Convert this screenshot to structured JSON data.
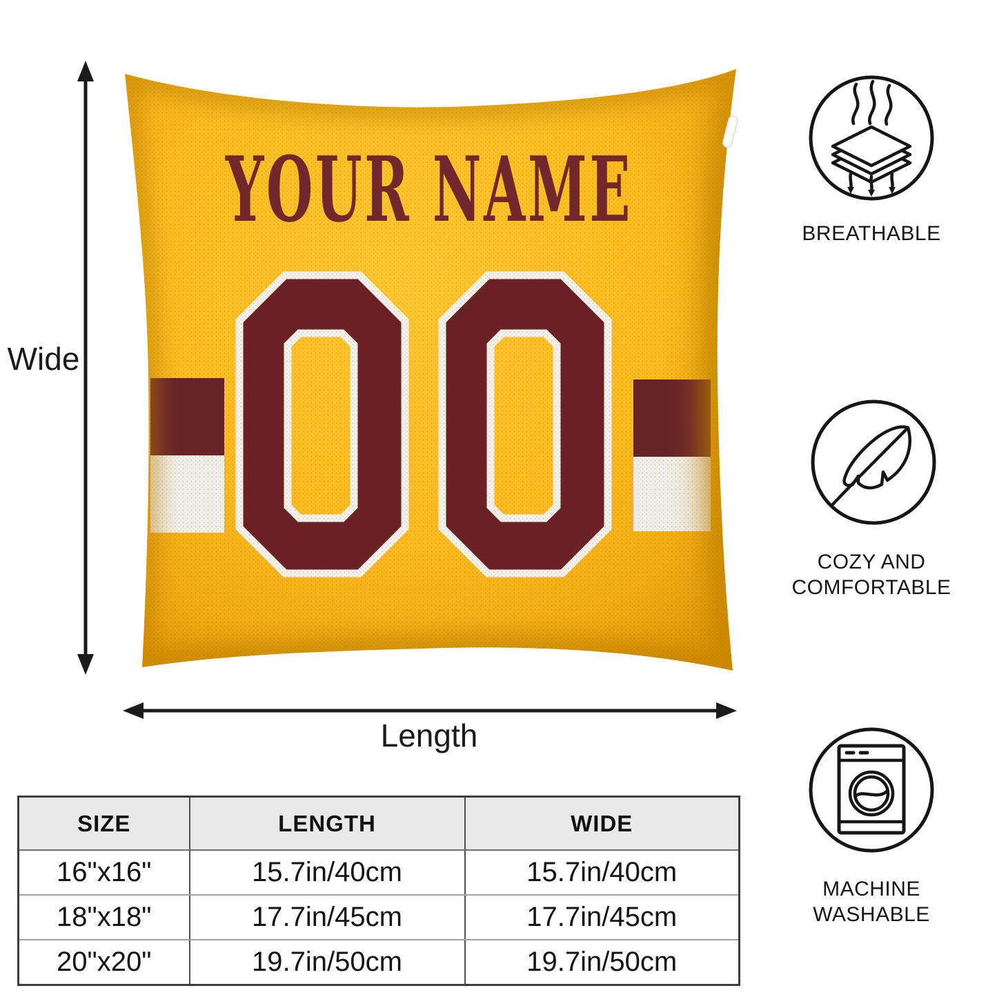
{
  "product": {
    "name_text": "YOUR NAME",
    "number_text": "00",
    "colors": {
      "pillow_yellow": "#FCBB22",
      "pillow_yellow_deep": "#E29905",
      "maroon_number": "#6B2026",
      "maroon_name": "#71272C",
      "maroon_stripe": "#67232A",
      "stripe_white": "#F2F0EA",
      "annotation_black": "#1b1b1b"
    }
  },
  "dimensions": {
    "wide_label": "Wide",
    "length_label": "Length"
  },
  "features": [
    {
      "icon": "breathable-layers-icon",
      "label_lines": [
        "BREATHABLE"
      ]
    },
    {
      "icon": "feather-icon",
      "label_lines": [
        "COZY AND",
        "COMFORTABLE"
      ]
    },
    {
      "icon": "washing-machine-icon",
      "label_lines": [
        "MACHINE",
        "WASHABLE"
      ]
    }
  ],
  "size_table": {
    "headers": [
      "SIZE",
      "LENGTH",
      "WIDE"
    ],
    "rows": [
      {
        "size": "16\"x16\"",
        "length": "15.7in/40cm",
        "wide": "15.7in/40cm"
      },
      {
        "size": "18\"x18\"",
        "length": "17.7in/45cm",
        "wide": "17.7in/45cm"
      },
      {
        "size": "20\"x20\"",
        "length": "19.7in/50cm",
        "wide": "19.7in/50cm"
      }
    ]
  }
}
